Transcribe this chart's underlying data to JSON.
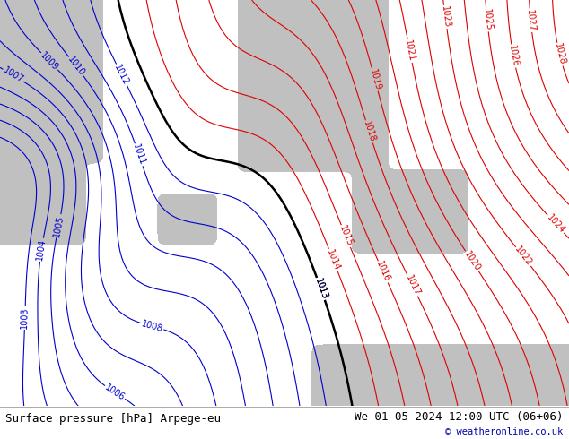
{
  "title_left": "Surface pressure [hPa] Arpege-eu",
  "title_right": "We 01-05-2024 12:00 UTC (06+06)",
  "credit": "© weatheronline.co.uk",
  "bg_color": "#b8e090",
  "sea_color": "#c0c0c0",
  "red_contour_color": "#dd0000",
  "blue_contour_color": "#0000cc",
  "black_contour_color": "#000000",
  "font_size_footer": 9,
  "font_size_labels": 7
}
